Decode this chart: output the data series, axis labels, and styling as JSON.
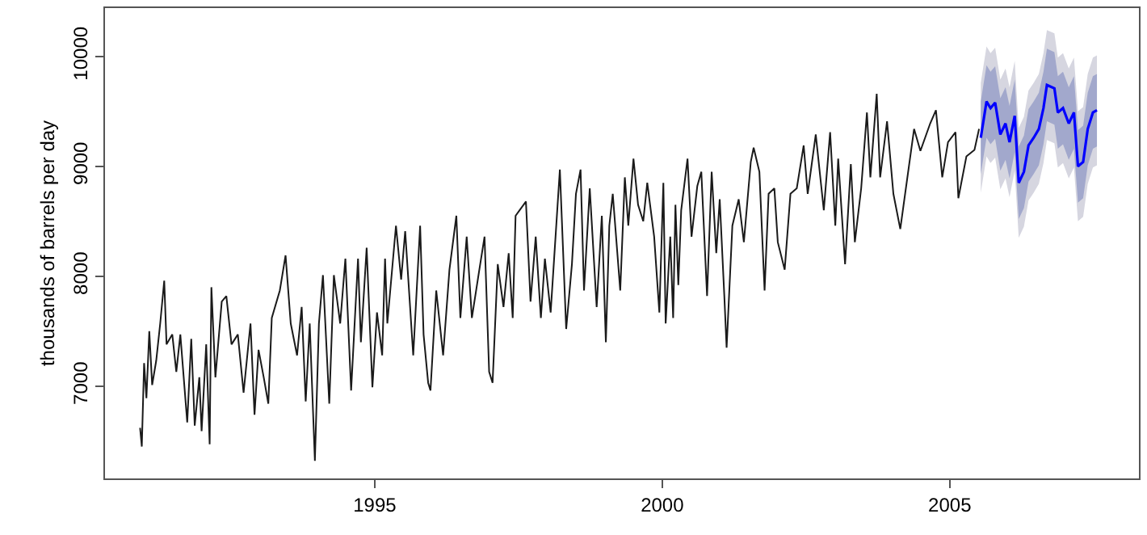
{
  "chart_data": {
    "type": "line",
    "ylabel": "thousands of barrels per day",
    "xlim": [
      1990.31,
      2008.29
    ],
    "ylim": [
      6160,
      10440
    ],
    "xticks": [
      1995,
      2000,
      2005
    ],
    "yticks": [
      7000,
      8000,
      9000,
      10000
    ],
    "marker": "none",
    "line_style": "solid",
    "series": [
      {
        "color": "#1a1a1a",
        "x": [
          1990.92,
          1990.95,
          1990.99,
          1991.03,
          1991.08,
          1991.13,
          1991.2,
          1991.27,
          1991.34,
          1991.38,
          1991.48,
          1991.55,
          1991.62,
          1991.74,
          1991.81,
          1991.87,
          1991.95,
          1991.99,
          1992.07,
          1992.13,
          1992.16,
          1992.23,
          1992.34,
          1992.42,
          1992.51,
          1992.62,
          1992.72,
          1992.84,
          1992.91,
          1992.98,
          1993.07,
          1993.15,
          1993.21,
          1993.35,
          1993.45,
          1993.54,
          1993.65,
          1993.73,
          1993.8,
          1993.87,
          1993.96,
          1994.03,
          1994.1,
          1994.21,
          1994.29,
          1994.4,
          1994.49,
          1994.59,
          1994.71,
          1994.76,
          1994.86,
          1994.96,
          1995.04,
          1995.13,
          1995.18,
          1995.22,
          1995.37,
          1995.46,
          1995.53,
          1995.67,
          1995.79,
          1995.85,
          1995.93,
          1995.97,
          1996.07,
          1996.19,
          1996.3,
          1996.42,
          1996.49,
          1996.6,
          1996.69,
          1996.82,
          1996.91,
          1996.99,
          1997.05,
          1997.14,
          1997.24,
          1997.33,
          1997.4,
          1997.45,
          1997.52,
          1997.63,
          1997.71,
          1997.8,
          1997.89,
          1997.96,
          1998.06,
          1998.22,
          1998.33,
          1998.43,
          1998.5,
          1998.58,
          1998.64,
          1998.74,
          1998.86,
          1998.95,
          1999.02,
          1999.08,
          1999.14,
          1999.27,
          1999.35,
          1999.41,
          1999.5,
          1999.58,
          1999.67,
          1999.74,
          1999.86,
          1999.95,
          2000.02,
          2000.06,
          2000.14,
          2000.19,
          2000.23,
          2000.28,
          2000.33,
          2000.44,
          2000.51,
          2000.61,
          2000.68,
          2000.78,
          2000.86,
          2000.94,
          2001.0,
          2001.08,
          2001.12,
          2001.22,
          2001.33,
          2001.42,
          2001.54,
          2001.59,
          2001.69,
          2001.78,
          2001.85,
          2001.95,
          2002.01,
          2002.13,
          2002.23,
          2002.34,
          2002.46,
          2002.53,
          2002.67,
          2002.81,
          2002.92,
          2003.01,
          2003.06,
          2003.18,
          2003.28,
          2003.35,
          2003.46,
          2003.56,
          2003.62,
          2003.73,
          2003.79,
          2003.91,
          2004.02,
          2004.14,
          2004.29,
          2004.38,
          2004.49,
          2004.66,
          2004.76,
          2004.87,
          2004.97,
          2005.1,
          2005.15,
          2005.29,
          2005.43,
          2005.51
        ],
        "values": [
          6620,
          6450,
          7210,
          6890,
          7500,
          7010,
          7230,
          7570,
          7960,
          7380,
          7470,
          7130,
          7470,
          6670,
          7430,
          6640,
          7080,
          6590,
          7380,
          6470,
          7900,
          7080,
          7770,
          7820,
          7380,
          7470,
          6940,
          7570,
          6740,
          7330,
          7080,
          6840,
          7620,
          7870,
          8190,
          7570,
          7280,
          7720,
          6860,
          7570,
          6320,
          7570,
          8010,
          6840,
          8010,
          7570,
          8160,
          6960,
          8160,
          7400,
          8260,
          6990,
          7670,
          7280,
          8160,
          7570,
          8460,
          7970,
          8410,
          7280,
          8460,
          7470,
          7030,
          6960,
          7870,
          7280,
          8060,
          8550,
          7620,
          8360,
          7620,
          8060,
          8360,
          7130,
          7030,
          8110,
          7720,
          8210,
          7620,
          8550,
          8600,
          8680,
          7770,
          8360,
          7620,
          8160,
          7670,
          8970,
          7520,
          8110,
          8750,
          8970,
          7870,
          8800,
          7720,
          8550,
          7400,
          8460,
          8750,
          7870,
          8900,
          8460,
          9070,
          8650,
          8500,
          8850,
          8360,
          7670,
          8850,
          7570,
          8360,
          7620,
          8650,
          7920,
          8600,
          9070,
          8360,
          8820,
          8950,
          7820,
          8950,
          8210,
          8700,
          7820,
          7350,
          8460,
          8700,
          8310,
          9040,
          9170,
          8950,
          7870,
          8750,
          8800,
          8310,
          8060,
          8750,
          8800,
          9190,
          8750,
          9290,
          8600,
          9310,
          8460,
          9070,
          8110,
          9020,
          8310,
          8800,
          9490,
          8900,
          9660,
          8900,
          9410,
          8750,
          8430,
          9000,
          9340,
          9140,
          9390,
          9510,
          8900,
          9220,
          9310,
          8710,
          9090,
          9150,
          9340
        ]
      },
      {
        "color": "#d6d6e0",
        "x": [
          2005.54,
          2005.64,
          2005.71,
          2005.79,
          2005.88,
          2005.97,
          2006.04,
          2006.13,
          2006.2,
          2006.29,
          2006.37,
          2006.46,
          2006.55,
          2006.63,
          2006.69,
          2006.82,
          2006.88,
          2006.97,
          2007.07,
          2007.16,
          2007.23,
          2007.32,
          2007.4,
          2007.49,
          2007.56
        ],
        "values": [
          null,
          null,
          null,
          null,
          null,
          null,
          null,
          null,
          null,
          null,
          null,
          null,
          null,
          null,
          null,
          null,
          null,
          null,
          null,
          null,
          null,
          null,
          null,
          null,
          null
        ],
        "lower": [
          8760,
          9090,
          9030,
          9080,
          8790,
          8890,
          8720,
          8960,
          8350,
          8450,
          8690,
          8760,
          8840,
          9030,
          9240,
          9210,
          8990,
          9030,
          8890,
          8990,
          8500,
          8540,
          8840,
          8990,
          9010
        ],
        "upper": [
          9760,
          10090,
          10030,
          10080,
          9790,
          9890,
          9720,
          9960,
          9350,
          9450,
          9690,
          9760,
          9840,
          10030,
          10240,
          10210,
          9990,
          10030,
          9890,
          9990,
          9500,
          9540,
          9840,
          9990,
          10010
        ]
      },
      {
        "color": "#a2a8cc",
        "x": [
          2005.54,
          2005.64,
          2005.71,
          2005.79,
          2005.88,
          2005.97,
          2006.04,
          2006.13,
          2006.2,
          2006.29,
          2006.37,
          2006.46,
          2006.55,
          2006.63,
          2006.69,
          2006.82,
          2006.88,
          2006.97,
          2007.07,
          2007.16,
          2007.23,
          2007.32,
          2007.4,
          2007.49,
          2007.56
        ],
        "values": [
          null,
          null,
          null,
          null,
          null,
          null,
          null,
          null,
          null,
          null,
          null,
          null,
          null,
          null,
          null,
          null,
          null,
          null,
          null,
          null,
          null,
          null,
          null,
          null,
          null
        ],
        "lower": [
          8930,
          9260,
          9200,
          9250,
          8960,
          9060,
          8890,
          9130,
          8520,
          8620,
          8860,
          8930,
          9010,
          9200,
          9410,
          9380,
          9160,
          9200,
          9060,
          9160,
          8670,
          8710,
          9010,
          9160,
          9180
        ],
        "upper": [
          9590,
          9920,
          9860,
          9910,
          9620,
          9720,
          9550,
          9790,
          9180,
          9280,
          9520,
          9590,
          9670,
          9860,
          10070,
          10040,
          9820,
          9860,
          9720,
          9820,
          9330,
          9370,
          9670,
          9820,
          9840
        ]
      },
      {
        "color": "#0000ff",
        "x": [
          2005.54,
          2005.64,
          2005.71,
          2005.79,
          2005.88,
          2005.97,
          2006.04,
          2006.13,
          2006.2,
          2006.29,
          2006.37,
          2006.46,
          2006.55,
          2006.63,
          2006.69,
          2006.82,
          2006.88,
          2006.97,
          2007.07,
          2007.16,
          2007.23,
          2007.32,
          2007.4,
          2007.49,
          2007.56
        ],
        "values": [
          9260,
          9590,
          9530,
          9580,
          9290,
          9390,
          9220,
          9460,
          8850,
          8950,
          9190,
          9260,
          9340,
          9530,
          9740,
          9710,
          9490,
          9530,
          9390,
          9490,
          9000,
          9040,
          9340,
          9490,
          9510
        ]
      }
    ]
  }
}
